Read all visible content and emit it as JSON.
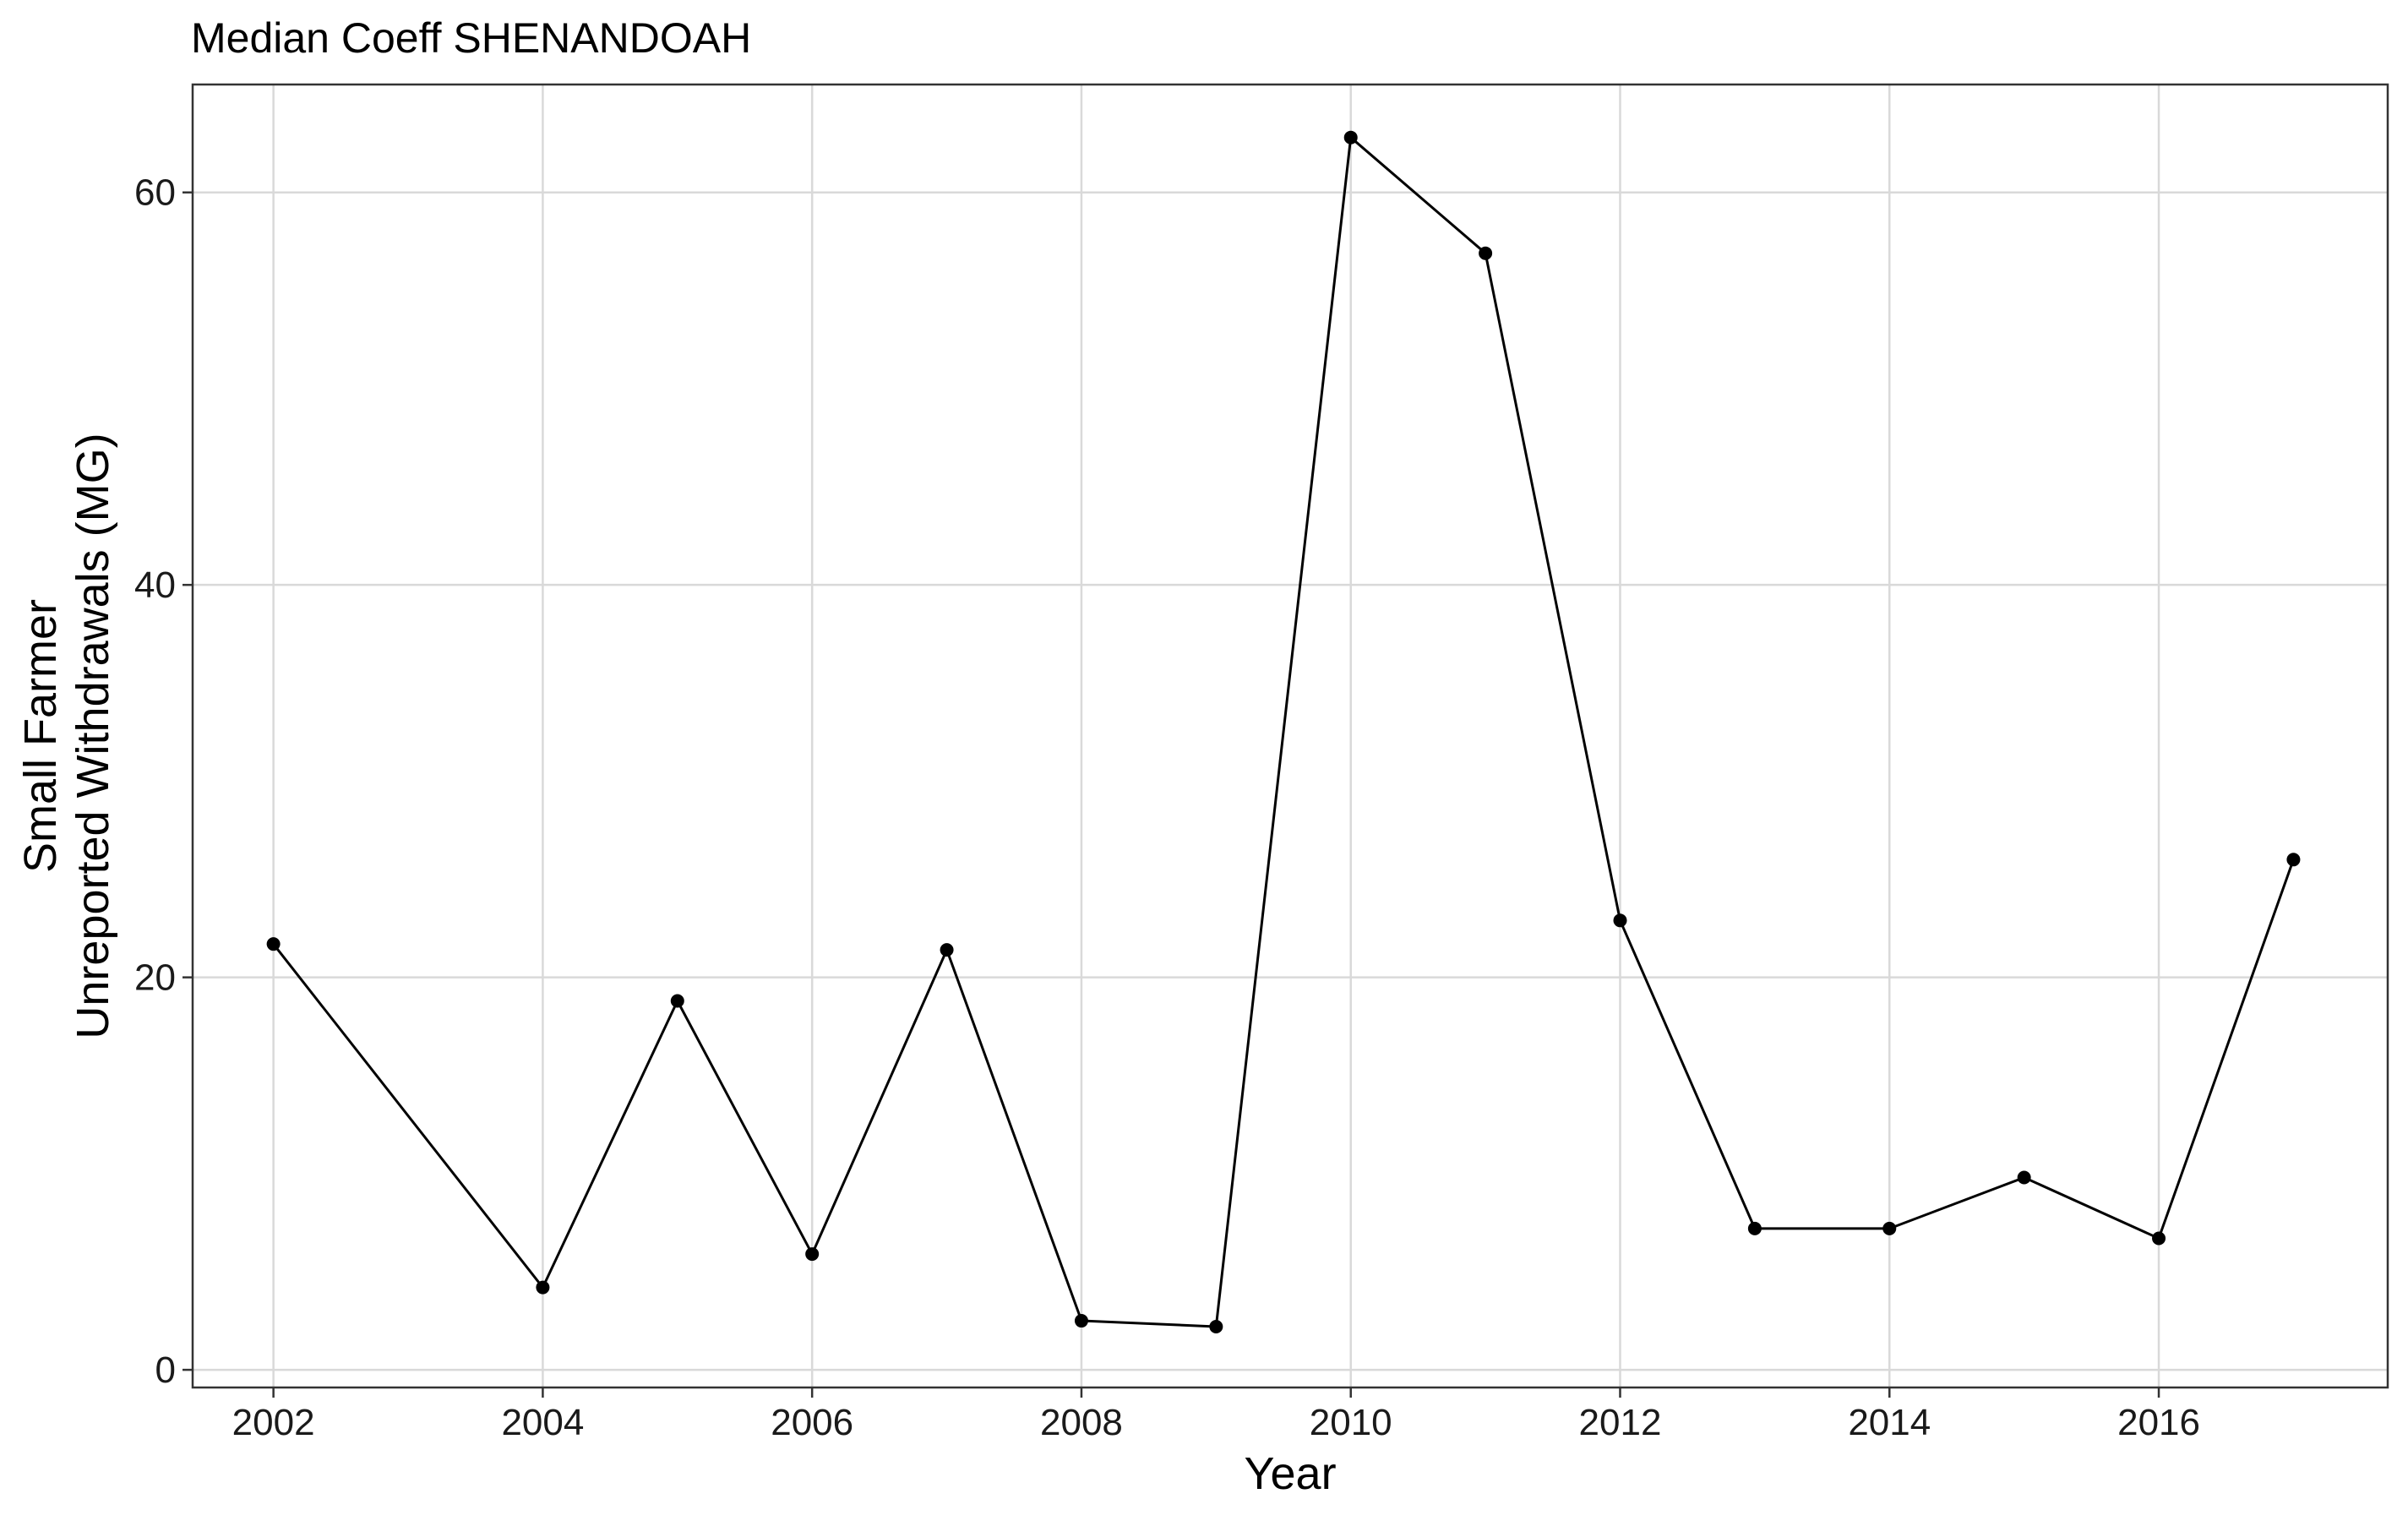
{
  "chart_data": {
    "type": "line",
    "title": "Median Coeff SHENANDOAH",
    "xlabel": "Year",
    "ylabel_lines": [
      "Small Farmer",
      "Unreported Withdrawals (MG)"
    ],
    "x": [
      2002,
      2004,
      2005,
      2006,
      2007,
      2008,
      2009,
      2010,
      2011,
      2012,
      2013,
      2014,
      2015,
      2016,
      2017
    ],
    "series": [
      {
        "values": [
          21.7,
          4.2,
          18.8,
          5.9,
          21.4,
          2.5,
          2.2,
          62.8,
          56.9,
          22.9,
          7.2,
          7.2,
          9.8,
          6.7,
          26.0
        ]
      }
    ],
    "xticks": [
      2002,
      2004,
      2006,
      2008,
      2010,
      2012,
      2014,
      2016
    ],
    "yticks": [
      0,
      20,
      40,
      60
    ],
    "xlim": [
      2001.4,
      2017.7
    ],
    "ylim": [
      -0.9,
      65.5
    ],
    "grid": true,
    "legend": "none",
    "line_color": "#000000",
    "grid_color": "#d9d9d9"
  }
}
